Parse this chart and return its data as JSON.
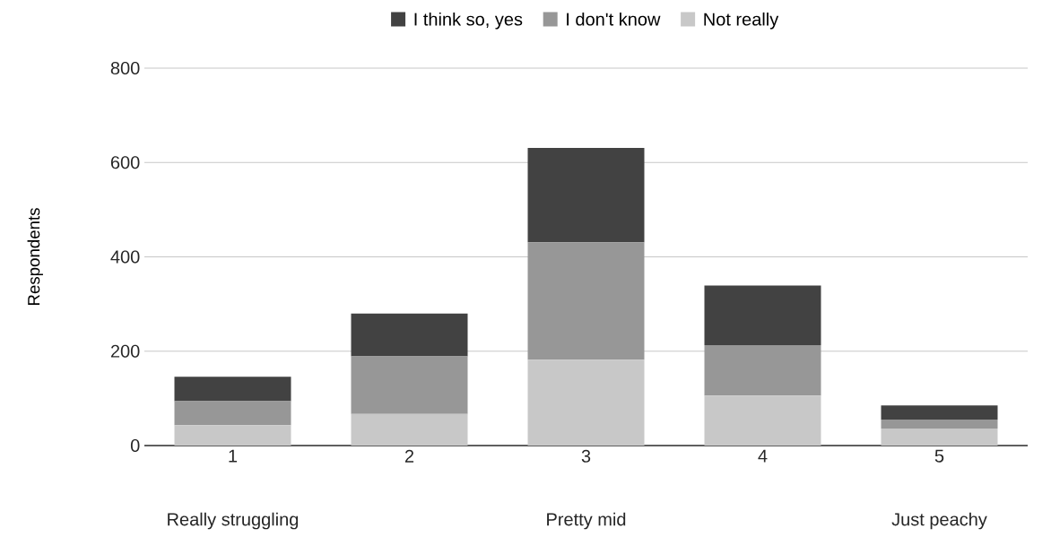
{
  "chart_data": {
    "type": "bar",
    "stacked": true,
    "ylabel": "Respondents",
    "categories": [
      "1",
      "2",
      "3",
      "4",
      "5"
    ],
    "series": [
      {
        "name": "Not really",
        "color": "#c8c8c8",
        "values": [
          43,
          67,
          182,
          106,
          36
        ]
      },
      {
        "name": "I don't know",
        "color": "#979797",
        "values": [
          51,
          122,
          249,
          107,
          19
        ]
      },
      {
        "name": "I think so, yes",
        "color": "#424242",
        "values": [
          52,
          91,
          200,
          126,
          30
        ]
      }
    ],
    "ylim": [
      0,
      800
    ],
    "yticks": [
      0,
      200,
      400,
      600,
      800
    ],
    "grid": "y",
    "legend": "top",
    "annotations": [
      "Really struggling",
      "Pretty mid",
      "Just peachy"
    ]
  }
}
